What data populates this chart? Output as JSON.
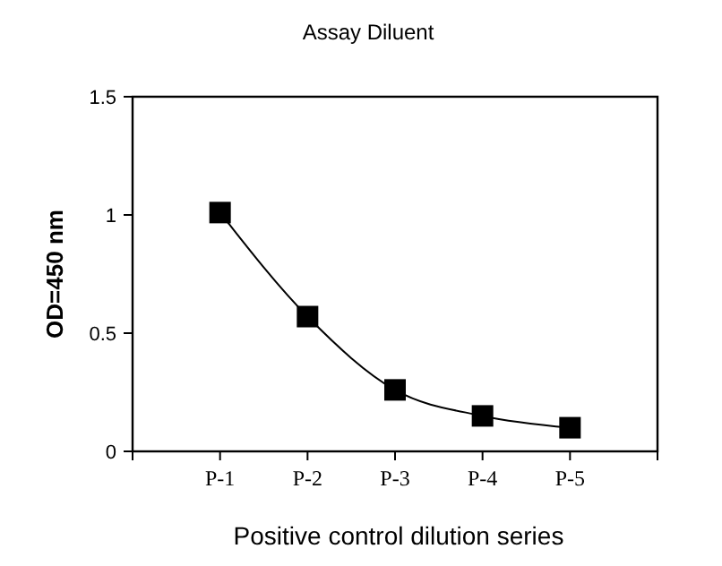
{
  "chart_data": {
    "type": "line",
    "title": "Assay Diluent",
    "xlabel": "Positive control dilution series",
    "ylabel": "OD=450 nm",
    "categories": [
      "P-1",
      "P-2",
      "P-3",
      "P-4",
      "P-5"
    ],
    "series": [
      {
        "color": "#000000",
        "values": [
          1.01,
          0.57,
          0.26,
          0.15,
          0.1
        ]
      }
    ],
    "ylim": [
      0,
      1.5
    ],
    "yticks": [
      0,
      0.5,
      1,
      1.5
    ],
    "marker": "square",
    "line_style": "solid",
    "grid": false
  }
}
